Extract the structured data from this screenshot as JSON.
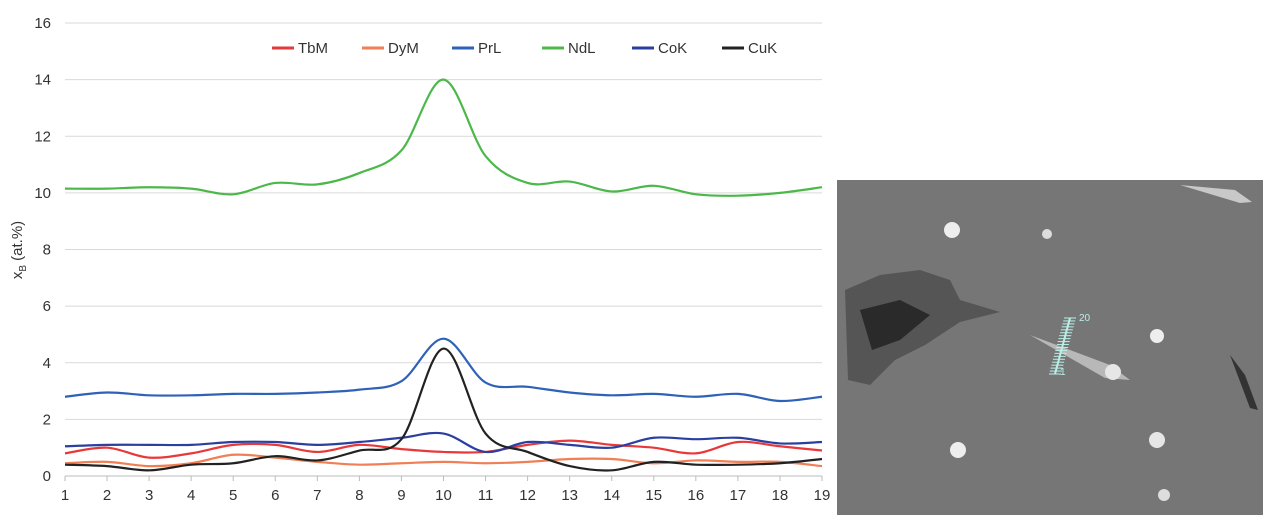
{
  "chart_data": {
    "type": "line",
    "ylabel": {
      "base": "x",
      "sub": "B",
      "rest": " (at.%)"
    },
    "x": [
      1,
      2,
      3,
      4,
      5,
      6,
      7,
      8,
      9,
      10,
      11,
      12,
      13,
      14,
      15,
      16,
      17,
      18,
      19
    ],
    "xlim": [
      1,
      19
    ],
    "xticks": [
      1,
      2,
      3,
      4,
      5,
      6,
      7,
      8,
      9,
      10,
      11,
      12,
      13,
      14,
      15,
      16,
      17,
      18,
      19
    ],
    "ylim": [
      0,
      16
    ],
    "yticks": [
      0,
      2,
      4,
      6,
      8,
      10,
      12,
      14,
      16
    ],
    "grid": true,
    "legend": "top",
    "series": [
      {
        "name": "TbM",
        "color": "#e8393a",
        "values": [
          0.8,
          1.0,
          0.65,
          0.8,
          1.1,
          1.1,
          0.85,
          1.1,
          0.95,
          0.85,
          0.85,
          1.1,
          1.25,
          1.1,
          1.0,
          0.8,
          1.2,
          1.05,
          0.9
        ]
      },
      {
        "name": "DyM",
        "color": "#f07f55",
        "values": [
          0.45,
          0.5,
          0.35,
          0.45,
          0.75,
          0.65,
          0.5,
          0.4,
          0.45,
          0.5,
          0.45,
          0.5,
          0.6,
          0.6,
          0.45,
          0.55,
          0.5,
          0.5,
          0.35
        ]
      },
      {
        "name": "PrL",
        "color": "#2e62b8",
        "values": [
          2.8,
          2.95,
          2.85,
          2.85,
          2.9,
          2.9,
          2.95,
          3.05,
          3.35,
          4.85,
          3.3,
          3.15,
          2.95,
          2.85,
          2.9,
          2.8,
          2.9,
          2.65,
          2.8
        ]
      },
      {
        "name": "NdL",
        "color": "#4cb84a",
        "values": [
          10.15,
          10.15,
          10.2,
          10.15,
          9.95,
          10.35,
          10.3,
          10.7,
          11.5,
          14.0,
          11.3,
          10.35,
          10.4,
          10.05,
          10.25,
          9.95,
          9.9,
          10.0,
          10.2
        ]
      },
      {
        "name": "CoK",
        "color": "#2a3fa0",
        "values": [
          1.05,
          1.1,
          1.1,
          1.1,
          1.2,
          1.2,
          1.1,
          1.2,
          1.35,
          1.5,
          0.85,
          1.2,
          1.1,
          1.0,
          1.35,
          1.3,
          1.35,
          1.15,
          1.2
        ]
      },
      {
        "name": "CuK",
        "color": "#222222",
        "values": [
          0.4,
          0.35,
          0.2,
          0.4,
          0.45,
          0.7,
          0.55,
          0.9,
          1.3,
          4.5,
          1.5,
          0.85,
          0.35,
          0.2,
          0.5,
          0.4,
          0.4,
          0.45,
          0.6
        ]
      }
    ]
  },
  "micrograph": {
    "labels": [
      "20",
      "1"
    ]
  }
}
